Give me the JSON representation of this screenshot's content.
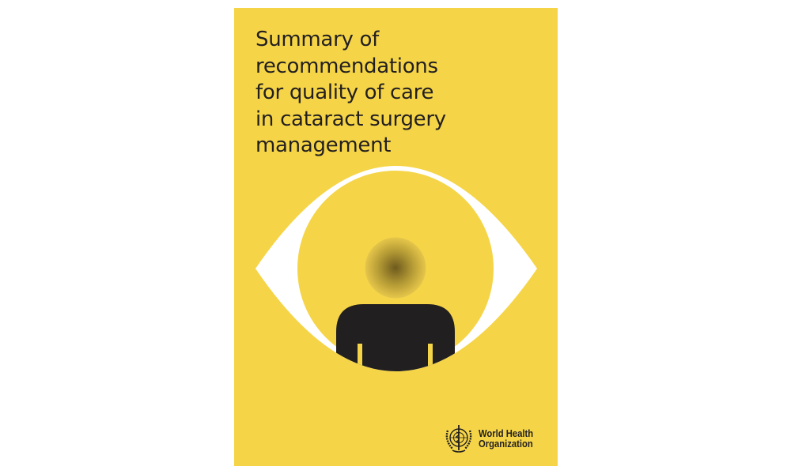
{
  "cover": {
    "background_color": "#F5D547",
    "title_lines": [
      "Summary of",
      "recommendations",
      "for quality of care",
      "in cataract surgery",
      "management"
    ],
    "illustration": "eye-with-person-icon",
    "publisher": {
      "logo": "who-emblem-icon",
      "name_lines": [
        "World Health",
        "Organization"
      ]
    }
  }
}
